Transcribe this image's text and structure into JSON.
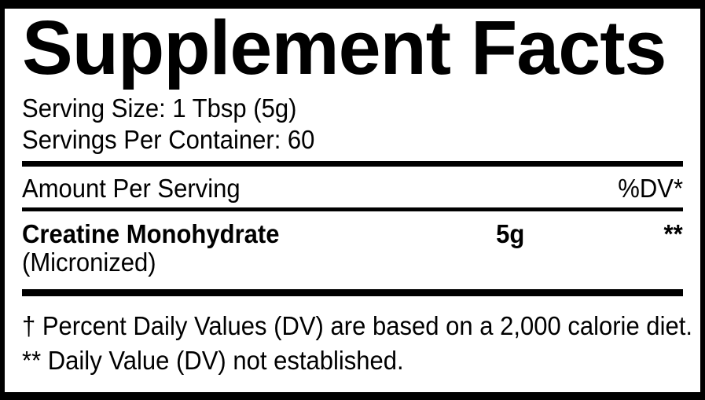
{
  "label": {
    "title": "Supplement Facts",
    "serving_info": {
      "serving_size": "Serving Size: 1 Tbsp (5g)",
      "servings_per_container": "Servings Per Container: 60"
    },
    "columns": {
      "amount_header": "Amount Per Serving",
      "dv_header": "%DV*"
    },
    "nutrients": [
      {
        "name": "Creatine Monohydrate",
        "form": "(Micronized)",
        "amount": "5g",
        "daily_value": "**"
      }
    ],
    "footnotes": [
      "† Percent Daily Values (DV) are based on a 2,000 calorie diet.",
      "** Daily Value (DV) not established."
    ],
    "colors": {
      "ink": "#000000",
      "background": "#ffffff"
    }
  }
}
